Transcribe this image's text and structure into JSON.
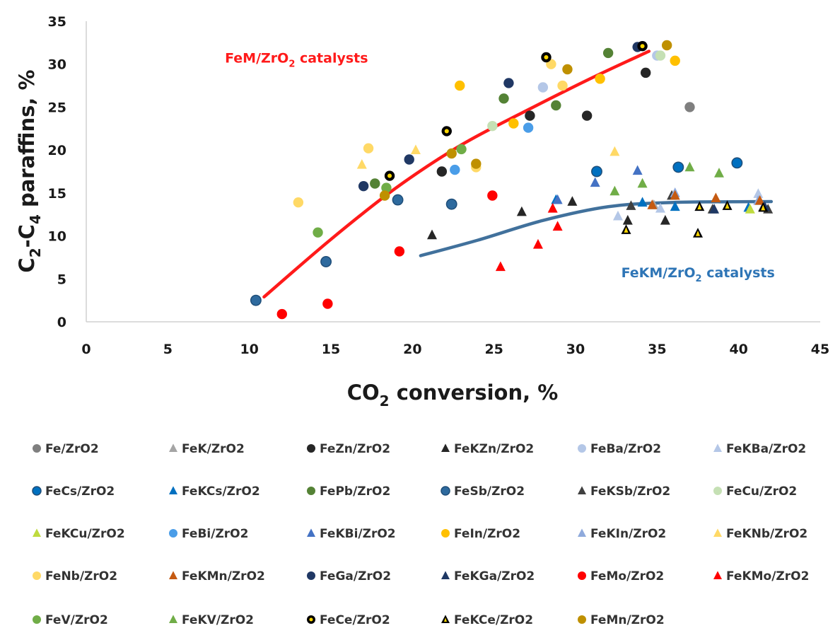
{
  "chart_data": {
    "type": "scatter",
    "xlabel": "CO",
    "xlabel_sub": "2",
    "xlabel_rest": " conversion, %",
    "ylabel": "C",
    "ylabel_sub1": "2",
    "ylabel_mid": "-C",
    "ylabel_sub2": "4",
    "ylabel_rest": " paraffins, %",
    "xlim": [
      0,
      45
    ],
    "ylim": [
      0,
      35
    ],
    "xticks": [
      "0",
      "5",
      "10",
      "15",
      "20",
      "25",
      "30",
      "35",
      "40",
      "45"
    ],
    "yticks": [
      "0",
      "5",
      "10",
      "15",
      "20",
      "25",
      "30",
      "35"
    ],
    "grid": false,
    "legend_position": "bottom",
    "annotations": [
      {
        "id": "fem",
        "text": "FeM/ZrO",
        "sub": "2",
        "rest": " catalysts",
        "color": "#ff1a1a",
        "x": 8.5,
        "y": 30.2
      },
      {
        "id": "fekm",
        "text": "FeKM/ZrO",
        "sub": "2",
        "rest": " catalysts",
        "color": "#2e75b6",
        "x": 32.8,
        "y": 5.2
      }
    ],
    "trend_lines": [
      {
        "name": "FeM/ZrO2 trend",
        "color": "#ff1a1a",
        "points": [
          [
            10.9,
            2.9
          ],
          [
            15,
            9.6
          ],
          [
            19,
            15.6
          ],
          [
            23,
            20.6
          ],
          [
            27,
            24.6
          ],
          [
            31,
            28.4
          ],
          [
            34.5,
            31.5
          ]
        ]
      },
      {
        "name": "FeKM/ZrO2 trend",
        "color": "#41719c",
        "points": [
          [
            20.5,
            7.7
          ],
          [
            24,
            9.5
          ],
          [
            28,
            11.8
          ],
          [
            32,
            13.4
          ],
          [
            36,
            13.9
          ],
          [
            42,
            14
          ]
        ]
      }
    ],
    "series": [
      {
        "name": "Fe/ZrO2",
        "marker": "circle",
        "color": "#7f7f7f",
        "points": [
          [
            37,
            25
          ]
        ]
      },
      {
        "name": "FeK/ZrO2",
        "marker": "triangle",
        "color": "#a5a5a5",
        "points": [
          [
            34.8,
            13.6
          ],
          [
            41.5,
            13.4
          ]
        ]
      },
      {
        "name": "FeZn/ZrO2",
        "marker": "circle",
        "color": "#262626",
        "points": [
          [
            21.8,
            17.5
          ],
          [
            27.2,
            24
          ],
          [
            30.7,
            24
          ],
          [
            34.3,
            29
          ]
        ]
      },
      {
        "name": "FeKZn/ZrO2",
        "marker": "triangle",
        "color": "#262626",
        "points": [
          [
            21.2,
            10.1
          ],
          [
            26.7,
            12.8
          ],
          [
            29.8,
            14
          ],
          [
            33.2,
            11.8
          ],
          [
            35.5,
            11.8
          ]
        ]
      },
      {
        "name": "FeBa/ZrO2",
        "marker": "circle",
        "color": "#b4c7e7",
        "points": [
          [
            28,
            27.3
          ],
          [
            35,
            31
          ]
        ]
      },
      {
        "name": "FeKBa/ZrO2",
        "marker": "triangle",
        "color": "#b4c7e7",
        "points": [
          [
            32.6,
            12.3
          ],
          [
            35.2,
            13.2
          ],
          [
            41.2,
            14.9
          ]
        ]
      },
      {
        "name": "FeCs/ZrO2",
        "marker": "circle-outline",
        "color": "#0070c0",
        "points": [
          [
            31.3,
            17.5
          ],
          [
            36.3,
            18
          ],
          [
            39.9,
            18.5
          ]
        ]
      },
      {
        "name": "FeKCs/ZrO2",
        "marker": "triangle",
        "color": "#0070c0",
        "points": [
          [
            28.8,
            14.2
          ],
          [
            34.1,
            13.9
          ],
          [
            36.1,
            13.4
          ],
          [
            40.6,
            13.3
          ]
        ]
      },
      {
        "name": "FePb/ZrO2",
        "marker": "circle",
        "color": "#548235",
        "points": [
          [
            17.7,
            16.1
          ],
          [
            25.6,
            26
          ],
          [
            28.8,
            25.2
          ],
          [
            32,
            31.3
          ]
        ]
      },
      {
        "name": "FeSb/ZrO2",
        "marker": "circle-outline",
        "color": "#2e6a9e",
        "points": [
          [
            10.4,
            2.5
          ],
          [
            14.7,
            7
          ],
          [
            19.1,
            14.2
          ],
          [
            22.4,
            13.7
          ]
        ]
      },
      {
        "name": "FeKSb/ZrO2",
        "marker": "triangle",
        "color": "#404040",
        "points": [
          [
            33.4,
            13.5
          ],
          [
            35.9,
            14.7
          ],
          [
            38.4,
            13.1
          ],
          [
            41.8,
            13.1
          ]
        ]
      },
      {
        "name": "FeCu/ZrO2",
        "marker": "circle",
        "color": "#c5e0b4",
        "points": [
          [
            24.9,
            22.8
          ],
          [
            35.2,
            31
          ]
        ]
      },
      {
        "name": "FeKCu/ZrO2",
        "marker": "triangle",
        "color": "#bfdb3f",
        "points": [
          [
            40.7,
            13.1
          ]
        ]
      },
      {
        "name": "FeBi/ZrO2",
        "marker": "circle",
        "color": "#4a9de8",
        "points": [
          [
            22.6,
            17.7
          ],
          [
            27.1,
            22.6
          ]
        ]
      },
      {
        "name": "FeKBi/ZrO2",
        "marker": "triangle",
        "color": "#4472c4",
        "points": [
          [
            28.9,
            14.2
          ],
          [
            31.2,
            16.2
          ],
          [
            33.8,
            17.6
          ]
        ]
      },
      {
        "name": "FeIn/ZrO2",
        "marker": "circle",
        "color": "#ffc000",
        "points": [
          [
            22.9,
            27.5
          ],
          [
            26.2,
            23.1
          ],
          [
            31.5,
            28.3
          ],
          [
            36.1,
            30.4
          ]
        ]
      },
      {
        "name": "FeKIn/ZrO2",
        "marker": "triangle",
        "color": "#8faadc",
        "points": [
          [
            36.1,
            15
          ],
          [
            41.2,
            14.1
          ]
        ]
      },
      {
        "name": "FeKNb/ZrO2",
        "marker": "triangle",
        "color": "#ffd966",
        "points": [
          [
            16.9,
            18.3
          ],
          [
            20.2,
            20
          ],
          [
            32.4,
            19.8
          ]
        ]
      },
      {
        "name": "FeNb/ZrO2",
        "marker": "circle",
        "color": "#ffd966",
        "points": [
          [
            13,
            13.9
          ],
          [
            17.3,
            20.2
          ],
          [
            28.5,
            30
          ],
          [
            29.2,
            27.5
          ],
          [
            23.9,
            18
          ]
        ]
      },
      {
        "name": "FeKMn/ZrO2",
        "marker": "triangle",
        "color": "#c55a11",
        "points": [
          [
            34.7,
            13.6
          ],
          [
            36.1,
            14.7
          ],
          [
            38.6,
            14.4
          ],
          [
            41.3,
            14.1
          ]
        ]
      },
      {
        "name": "FeGa/ZrO2",
        "marker": "circle",
        "color": "#203864",
        "points": [
          [
            17,
            15.8
          ],
          [
            19.8,
            18.9
          ],
          [
            25.9,
            27.8
          ],
          [
            33.8,
            32
          ]
        ]
      },
      {
        "name": "FeKGa/ZrO2",
        "marker": "triangle",
        "color": "#1f3864",
        "points": [
          [
            38.5,
            13.1
          ],
          [
            41.6,
            13.4
          ]
        ]
      },
      {
        "name": "FeMo/ZrO2",
        "marker": "circle",
        "color": "#ff0000",
        "points": [
          [
            12,
            0.9
          ],
          [
            14.8,
            2.1
          ],
          [
            19.2,
            8.2
          ],
          [
            24.9,
            14.7
          ]
        ]
      },
      {
        "name": "FeKMo/ZrO2",
        "marker": "triangle",
        "color": "#ff0000",
        "points": [
          [
            25.4,
            6.4
          ],
          [
            27.7,
            9
          ],
          [
            28.6,
            13.2
          ],
          [
            28.9,
            11.1
          ]
        ]
      },
      {
        "name": "FeV/ZrO2",
        "marker": "circle",
        "color": "#70ad47",
        "points": [
          [
            14.2,
            10.4
          ],
          [
            18.4,
            15.6
          ],
          [
            23,
            20.1
          ]
        ]
      },
      {
        "name": "FeKV/ZrO2",
        "marker": "triangle",
        "color": "#70ad47",
        "points": [
          [
            32.4,
            15.2
          ],
          [
            34.1,
            16.1
          ],
          [
            37,
            18
          ],
          [
            38.8,
            17.3
          ]
        ]
      },
      {
        "name": "FeCe/ZrO2",
        "marker": "circle-dot",
        "color": "#000000",
        "points": [
          [
            18.6,
            17
          ],
          [
            22.1,
            22.2
          ],
          [
            28.2,
            30.8
          ],
          [
            34.1,
            32.1
          ]
        ]
      },
      {
        "name": "FeKCe/ZrO2",
        "marker": "triangle-dot",
        "color": "#000000",
        "points": [
          [
            33.1,
            10.7
          ],
          [
            37.5,
            10.3
          ],
          [
            37.6,
            13.4
          ],
          [
            39.3,
            13.5
          ],
          [
            41.5,
            13.3
          ]
        ]
      },
      {
        "name": "FeMn/ZrO2",
        "marker": "circle",
        "color": "#bf9000",
        "points": [
          [
            18.3,
            14.7
          ],
          [
            22.4,
            19.6
          ],
          [
            23.9,
            18.4
          ],
          [
            29.5,
            29.4
          ],
          [
            35.6,
            32.2
          ]
        ]
      }
    ]
  }
}
